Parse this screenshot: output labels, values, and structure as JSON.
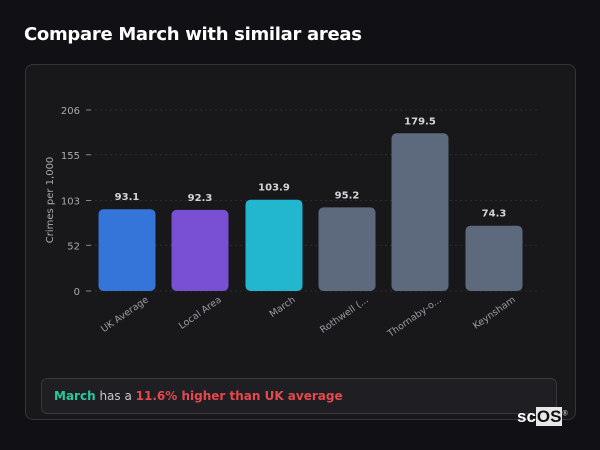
{
  "header": {
    "title": "Compare March with similar areas"
  },
  "chart_data": {
    "type": "bar",
    "title": "",
    "xlabel": "",
    "ylabel": "Crimes per 1,000",
    "ylim": [
      0,
      206
    ],
    "yticks": [
      "0",
      "52",
      "103",
      "155",
      "206"
    ],
    "grid": true,
    "categories": [
      "UK Average",
      "Local Area",
      "March",
      "Rothwell (...",
      "Thornaby-o...",
      "Keynsham"
    ],
    "values": [
      93.1,
      92.3,
      103.9,
      95.2,
      179.5,
      74.3
    ],
    "data_labels": [
      "93.1",
      "92.3",
      "103.9",
      "95.2",
      "179.5",
      "74.3"
    ],
    "colors": [
      "#3574d9",
      "#7a50d3",
      "#22b7cf",
      "#5d697c",
      "#5d697c",
      "#5d697c"
    ]
  },
  "summary": {
    "area": "March",
    "middle": " has a ",
    "highlight": "11.6% higher than UK average"
  },
  "logo": {
    "text_a": "sc",
    "text_b": "OS",
    "mark": "®"
  }
}
